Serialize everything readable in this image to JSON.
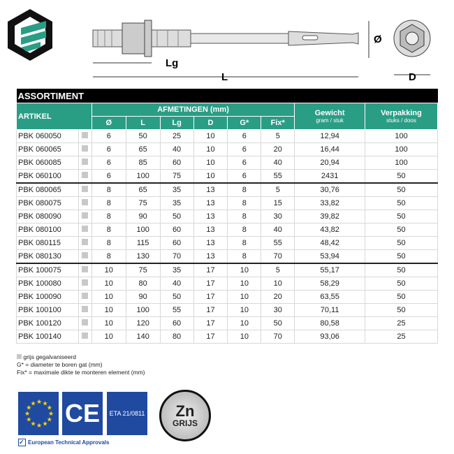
{
  "drawing": {
    "labels": {
      "lg": "Lg",
      "l": "L",
      "diameter": "Ø",
      "d": "D"
    }
  },
  "table": {
    "title": "ASSORTIMENT",
    "headers": {
      "artikel": "ARTIKEL",
      "afmetingen": "AFMETINGEN (mm)",
      "dims": [
        "Ø",
        "L",
        "Lg",
        "D",
        "G*",
        "Fix*"
      ],
      "gewicht": "Gewicht",
      "gewicht_unit": "gram / stuk",
      "verpakking": "Verpakking",
      "verpakking_unit": "stuks / doos"
    },
    "rows": [
      [
        "PBK 060050",
        "6",
        "50",
        "25",
        "10",
        "6",
        "5",
        "12,94",
        "100"
      ],
      [
        "PBK 060065",
        "6",
        "65",
        "40",
        "10",
        "6",
        "20",
        "16,44",
        "100"
      ],
      [
        "PBK 060085",
        "6",
        "85",
        "60",
        "10",
        "6",
        "40",
        "20,94",
        "100"
      ],
      [
        "PBK 060100",
        "6",
        "100",
        "75",
        "10",
        "6",
        "55",
        "2431",
        "50"
      ],
      [
        "PBK 080065",
        "8",
        "65",
        "35",
        "13",
        "8",
        "5",
        "30,76",
        "50"
      ],
      [
        "PBK 080075",
        "8",
        "75",
        "35",
        "13",
        "8",
        "15",
        "33,82",
        "50"
      ],
      [
        "PBK 080090",
        "8",
        "90",
        "50",
        "13",
        "8",
        "30",
        "39,82",
        "50"
      ],
      [
        "PBK 080100",
        "8",
        "100",
        "60",
        "13",
        "8",
        "40",
        "43,82",
        "50"
      ],
      [
        "PBK 080115",
        "8",
        "115",
        "60",
        "13",
        "8",
        "55",
        "48,42",
        "50"
      ],
      [
        "PBK 080130",
        "8",
        "130",
        "70",
        "13",
        "8",
        "70",
        "53,94",
        "50"
      ],
      [
        "PBK 100075",
        "10",
        "75",
        "35",
        "17",
        "10",
        "5",
        "55,17",
        "50"
      ],
      [
        "PBK 100080",
        "10",
        "80",
        "40",
        "17",
        "10",
        "10",
        "58,29",
        "50"
      ],
      [
        "PBK 100090",
        "10",
        "90",
        "50",
        "17",
        "10",
        "20",
        "63,55",
        "50"
      ],
      [
        "PBK 100100",
        "10",
        "100",
        "55",
        "17",
        "10",
        "30",
        "70,11",
        "50"
      ],
      [
        "PBK 100120",
        "10",
        "120",
        "60",
        "17",
        "10",
        "50",
        "80,58",
        "25"
      ],
      [
        "PBK 100140",
        "10",
        "140",
        "80",
        "17",
        "10",
        "70",
        "93,06",
        "25"
      ]
    ],
    "separators_before": [
      4,
      10
    ]
  },
  "notes": [
    "grijs gegalvaniseerd",
    "G* = diameter te boren gat (mm)",
    "Fix* = maximale dikte te monteren element (mm)"
  ],
  "badges": {
    "ce": "CE",
    "eta": "ETA 21/0811",
    "eta_caption": "European Technical Approvals",
    "zn": "Zn",
    "zn_sub": "GRIJS"
  },
  "colors": {
    "accent": "#2a9d85",
    "badge_blue": "#1f4aa0",
    "swatch": "#c8c8c8"
  }
}
